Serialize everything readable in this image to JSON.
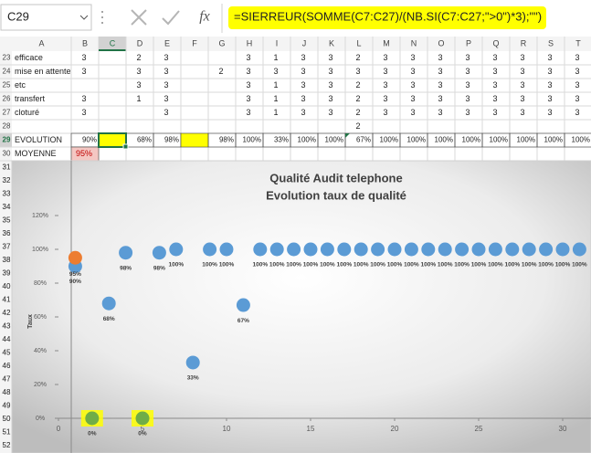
{
  "formula_bar": {
    "name_box": "C29",
    "fx": "fx",
    "formula": "=SIERREUR(SOMME(C7:C27)/(NB.SI(C7:C27;\">0\")*3);\"\")"
  },
  "sheet": {
    "columns": [
      "A",
      "B",
      "C",
      "D",
      "E",
      "F",
      "G",
      "H",
      "I",
      "J",
      "K",
      "L",
      "M",
      "N",
      "O",
      "P",
      "Q",
      "R",
      "S",
      "T"
    ],
    "row_numbers": [
      23,
      24,
      25,
      26,
      27,
      28,
      29,
      30,
      31,
      32,
      33,
      34,
      35,
      36,
      37,
      38,
      39,
      40,
      41,
      42,
      43,
      44,
      45,
      46,
      47,
      48,
      49,
      50,
      51,
      52
    ],
    "rows": [
      [
        "efficace",
        3,
        null,
        2,
        3,
        null,
        null,
        3,
        1,
        3,
        3,
        2,
        3,
        3,
        3,
        3,
        3,
        3,
        3,
        3
      ],
      [
        "mise en attente",
        3,
        null,
        3,
        3,
        null,
        2,
        3,
        3,
        3,
        3,
        3,
        3,
        3,
        3,
        3,
        3,
        3,
        3,
        3
      ],
      [
        "etc",
        null,
        null,
        3,
        3,
        null,
        null,
        3,
        1,
        3,
        3,
        2,
        3,
        3,
        3,
        3,
        3,
        3,
        3,
        3
      ],
      [
        "transfert",
        3,
        null,
        1,
        3,
        null,
        null,
        3,
        1,
        3,
        3,
        2,
        3,
        3,
        3,
        3,
        3,
        3,
        3,
        3
      ],
      [
        "cloturé",
        3,
        null,
        null,
        3,
        null,
        null,
        3,
        1,
        3,
        3,
        2,
        3,
        3,
        3,
        3,
        3,
        3,
        3,
        3
      ],
      [
        null,
        null,
        null,
        null,
        null,
        null,
        null,
        null,
        null,
        null,
        null,
        2,
        null,
        null,
        null,
        null,
        null,
        null,
        null,
        null
      ],
      [
        "EVOLUTION",
        "90%",
        null,
        "68%",
        "98%",
        null,
        "98%",
        "100%",
        "33%",
        "100%",
        "100%",
        "67%",
        "100%",
        "100%",
        "100%",
        "100%",
        "100%",
        "100%",
        "100%",
        "100%"
      ],
      [
        "MOYENNE",
        "95%",
        null,
        null,
        null,
        null,
        null,
        null,
        null,
        null,
        null,
        null,
        null,
        null,
        null,
        null,
        null,
        null,
        null,
        null
      ]
    ]
  },
  "chart_data": {
    "type": "scatter",
    "title": "Qualité Audit telephone",
    "subtitle": "Evolution taux de qualité",
    "y_label": "Taux",
    "xlim": [
      0,
      31.5
    ],
    "ylim": [
      0,
      120
    ],
    "xticks": [
      0,
      5,
      10,
      15,
      20,
      25,
      30
    ],
    "yticks": [
      {
        "value": 0,
        "label": "0%"
      },
      {
        "value": 20,
        "label": "20%"
      },
      {
        "value": 40,
        "label": "40%"
      },
      {
        "value": 60,
        "label": "60%"
      },
      {
        "value": 80,
        "label": "80%"
      },
      {
        "value": 100,
        "label": "100%"
      },
      {
        "value": 120,
        "label": "120%"
      }
    ],
    "series": [
      {
        "color": "#5b9bd5",
        "x": [
          1,
          3,
          4,
          6,
          7,
          8,
          9,
          10,
          11,
          12,
          13,
          14,
          15,
          16,
          17,
          18,
          19,
          20,
          21,
          22,
          23,
          24,
          25,
          26,
          27,
          28,
          29,
          30,
          31
        ],
        "values": [
          90,
          68,
          98,
          98,
          100,
          33,
          100,
          100,
          67,
          100,
          100,
          100,
          100,
          100,
          100,
          100,
          100,
          100,
          100,
          100,
          100,
          100,
          100,
          100,
          100,
          100,
          100,
          100,
          100
        ],
        "value_labels": [
          "90%",
          "68%",
          "98%",
          "98%",
          "100%",
          "33%",
          "100%",
          "100%",
          "67%",
          "100%",
          "100%",
          "100%",
          "100%",
          "100%",
          "100%",
          "100%",
          "100%",
          "100%",
          "100%",
          "100%",
          "100%",
          "100%",
          "100%",
          "100%",
          "100%",
          "100%",
          "100%",
          "100%",
          "100%"
        ]
      },
      {
        "color": "#70ad47",
        "x": [
          2,
          5
        ],
        "values": [
          0,
          0
        ],
        "value_labels": [
          "0%",
          "0%"
        ]
      },
      {
        "color": "#ed7d31",
        "x": [
          1
        ],
        "values": [
          95
        ],
        "value_labels": [
          "95%"
        ]
      }
    ]
  }
}
